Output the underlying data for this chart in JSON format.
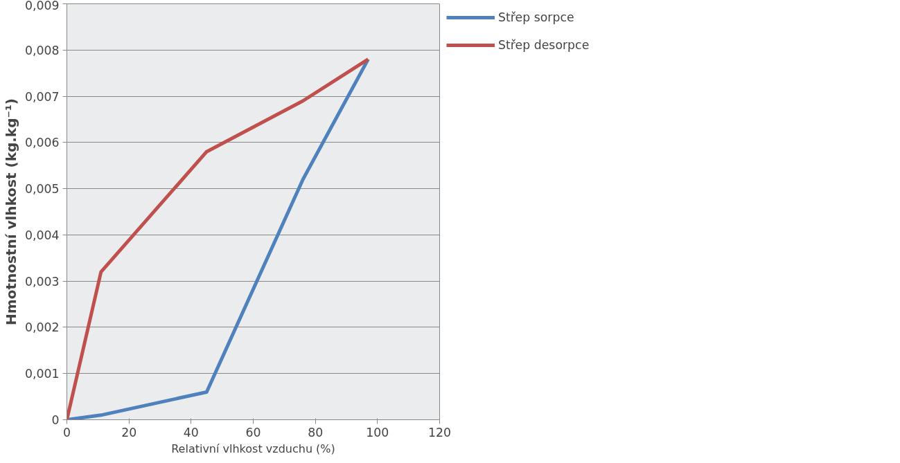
{
  "chart_data": {
    "type": "line",
    "xlabel": "Relativní vlhkost vzduchu (%)",
    "ylabel": "Hmotnostní vlhkost (kg.kg⁻¹)",
    "x": [
      0,
      11,
      45,
      76,
      97
    ],
    "series": [
      {
        "name": "Střep sorpce",
        "color": "#4f81bd",
        "values": [
          0,
          0.0001,
          0.0006,
          0.0052,
          0.0078
        ]
      },
      {
        "name": "Střep desorpce",
        "color": "#c0504d",
        "values": [
          0,
          0.0032,
          0.0058,
          0.0069,
          0.0078
        ]
      }
    ],
    "xlim": [
      0,
      120
    ],
    "xticks": [
      0,
      20,
      40,
      60,
      80,
      100,
      120
    ],
    "ylim": [
      0,
      0.009
    ],
    "yticks": [
      {
        "value": 0,
        "label": "0"
      },
      {
        "value": 0.001,
        "label": "0,001"
      },
      {
        "value": 0.002,
        "label": "0,002"
      },
      {
        "value": 0.003,
        "label": "0,003"
      },
      {
        "value": 0.004,
        "label": "0,004"
      },
      {
        "value": 0.005,
        "label": "0,005"
      },
      {
        "value": 0.006,
        "label": "0,006"
      },
      {
        "value": 0.007,
        "label": "0,007"
      },
      {
        "value": 0.008,
        "label": "0,008"
      },
      {
        "value": 0.009,
        "label": "0,009"
      }
    ],
    "grid": "y",
    "legend": "right",
    "marker": "none",
    "line_style": "solid"
  }
}
